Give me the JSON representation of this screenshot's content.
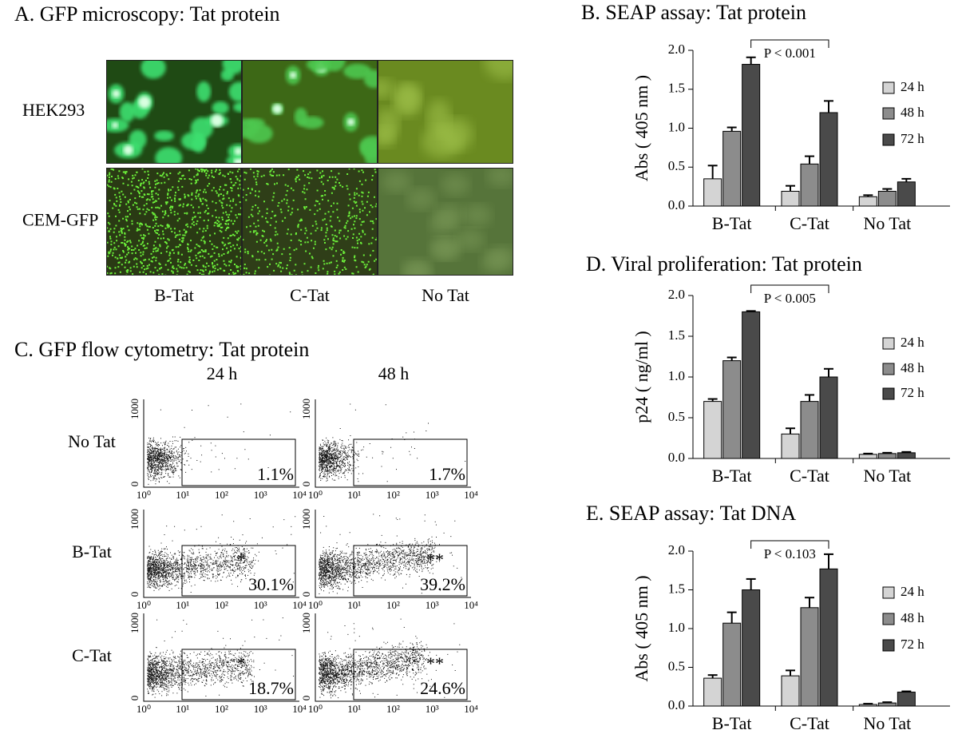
{
  "panel_a": {
    "title": "A. GFP microscopy: Tat protein",
    "rows": [
      "HEK293",
      "CEM-GFP"
    ],
    "columns": [
      "B-Tat",
      "C-Tat",
      "No Tat"
    ]
  },
  "panel_c": {
    "title": "C. GFP flow cytometry: Tat protein",
    "columns": [
      "24 h",
      "48 h"
    ],
    "rows": [
      {
        "label": "No Tat",
        "cells": [
          {
            "percent": "1.1%"
          },
          {
            "percent": "1.7%"
          }
        ]
      },
      {
        "label": "B-Tat",
        "cells": [
          {
            "mark": "*",
            "percent": "30.1%"
          },
          {
            "mark": "**",
            "percent": "39.2%"
          }
        ]
      },
      {
        "label": "C-Tat",
        "cells": [
          {
            "mark": "*",
            "percent": "18.7%"
          },
          {
            "mark": "**",
            "percent": "24.6%"
          }
        ]
      }
    ],
    "x_ticks": [
      "10⁰",
      "10¹",
      "10²",
      "10³",
      "10⁴"
    ],
    "y_ticks": [
      "0",
      "1000"
    ]
  },
  "chart_data": [
    {
      "type": "bar",
      "title": "B. SEAP assay: Tat protein",
      "y_label": "Abs ( 405 nm )",
      "annotation": "P < 0.001",
      "categories": [
        "B-Tat",
        "C-Tat",
        "No Tat"
      ],
      "series": [
        {
          "name": "24 h",
          "color": "#d4d4d4",
          "values": [
            0.35,
            0.19,
            0.12
          ],
          "errors": [
            0.17,
            0.07,
            0.02
          ]
        },
        {
          "name": "48 h",
          "color": "#8c8c8c",
          "values": [
            0.96,
            0.54,
            0.19
          ],
          "errors": [
            0.05,
            0.1,
            0.03
          ]
        },
        {
          "name": "72 h",
          "color": "#4a4a4a",
          "values": [
            1.82,
            1.2,
            0.31
          ],
          "errors": [
            0.09,
            0.15,
            0.04
          ]
        }
      ],
      "ylim": [
        0,
        2
      ],
      "yticks": [
        {
          "value": 0,
          "label": "0.0"
        },
        {
          "value": 0.5,
          "label": "0.5"
        },
        {
          "value": 1,
          "label": "1.0"
        },
        {
          "value": 1.5,
          "label": "1.5"
        },
        {
          "value": 2,
          "label": "2.0"
        }
      ]
    },
    {
      "type": "bar",
      "title": "D. Viral proliferation: Tat protein",
      "y_label": "p24 ( ng/ml )",
      "annotation": "P < 0.005",
      "categories": [
        "B-Tat",
        "C-Tat",
        "No Tat"
      ],
      "series": [
        {
          "name": "24 h",
          "color": "#d4d4d4",
          "values": [
            0.7,
            0.3,
            0.05
          ],
          "errors": [
            0.03,
            0.07,
            0.01
          ]
        },
        {
          "name": "48 h",
          "color": "#8c8c8c",
          "values": [
            1.2,
            0.7,
            0.06
          ],
          "errors": [
            0.04,
            0.08,
            0.01
          ]
        },
        {
          "name": "72 h",
          "color": "#4a4a4a",
          "values": [
            1.8,
            1.0,
            0.07
          ],
          "errors": [
            0.01,
            0.1,
            0.01
          ]
        }
      ],
      "ylim": [
        0,
        2
      ],
      "yticks": [
        {
          "value": 0,
          "label": "0.0"
        },
        {
          "value": 0.5,
          "label": "0.5"
        },
        {
          "value": 1,
          "label": "1.0"
        },
        {
          "value": 1.5,
          "label": "1.5"
        },
        {
          "value": 2,
          "label": "2.0"
        }
      ]
    },
    {
      "type": "bar",
      "title": "E. SEAP assay: Tat DNA",
      "y_label": "Abs ( 405 nm )",
      "annotation": "P < 0.103",
      "categories": [
        "B-Tat",
        "C-Tat",
        "No Tat"
      ],
      "series": [
        {
          "name": "24 h",
          "color": "#d4d4d4",
          "values": [
            0.36,
            0.39,
            0.02
          ],
          "errors": [
            0.04,
            0.07,
            0.01
          ]
        },
        {
          "name": "48 h",
          "color": "#8c8c8c",
          "values": [
            1.07,
            1.27,
            0.04
          ],
          "errors": [
            0.14,
            0.13,
            0.01
          ]
        },
        {
          "name": "72 h",
          "color": "#4a4a4a",
          "values": [
            1.5,
            1.77,
            0.18
          ],
          "errors": [
            0.14,
            0.19,
            0.01
          ]
        }
      ],
      "ylim": [
        0,
        2
      ],
      "yticks": [
        {
          "value": 0,
          "label": "0.0"
        },
        {
          "value": 0.5,
          "label": "0.5"
        },
        {
          "value": 1,
          "label": "1.0"
        },
        {
          "value": 1.5,
          "label": "1.5"
        },
        {
          "value": 2,
          "label": "2.0"
        }
      ]
    }
  ]
}
